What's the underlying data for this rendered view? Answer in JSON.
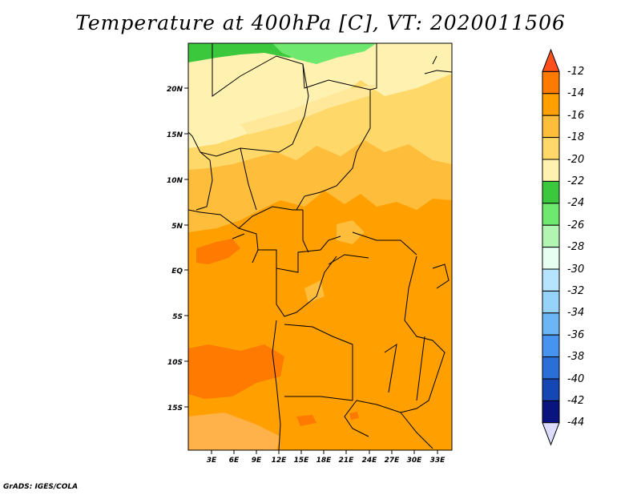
{
  "title": "Temperature at 400hPa [C], VT: 2020011506",
  "credit": "GrADS: IGES/COLA",
  "map": {
    "lat_labels": [
      "20N",
      "15N",
      "10N",
      "5N",
      "EQ",
      "5S",
      "10S",
      "15S"
    ],
    "lon_labels": [
      "3E",
      "6E",
      "9E",
      "12E",
      "15E",
      "18E",
      "21E",
      "24E",
      "27E",
      "30E",
      "33E"
    ]
  },
  "colorbar": {
    "labels": [
      "-12",
      "-14",
      "-16",
      "-18",
      "-20",
      "-22",
      "-24",
      "-26",
      "-28",
      "-30",
      "-32",
      "-34",
      "-36",
      "-38",
      "-40",
      "-42",
      "-44"
    ],
    "colors": [
      "#ff4f1a",
      "#ff7a00",
      "#ffa000",
      "#ffbd3c",
      "#ffd86a",
      "#fff2b0",
      "#3cc83c",
      "#6ee86e",
      "#b2f5b2",
      "#e6fff0",
      "#b6e4ff",
      "#96d2fa",
      "#6cb6f5",
      "#4694f0",
      "#2a6ed8",
      "#1446b4",
      "#0a147e",
      "#dcdcff"
    ],
    "bin_labels": [
      "above -12",
      "-14 to -12",
      "-16 to -14",
      "-18 to -16",
      "-20 to -18",
      "-22 to -20",
      "-24 to -22",
      "-26 to -24",
      "-28 to -26",
      "-30 to -28",
      "-32 to -30",
      "-34 to -32",
      "-36 to -34",
      "-38 to -36",
      "-40 to -38",
      "-42 to -40",
      "-44 to -42",
      "below -44"
    ]
  }
}
